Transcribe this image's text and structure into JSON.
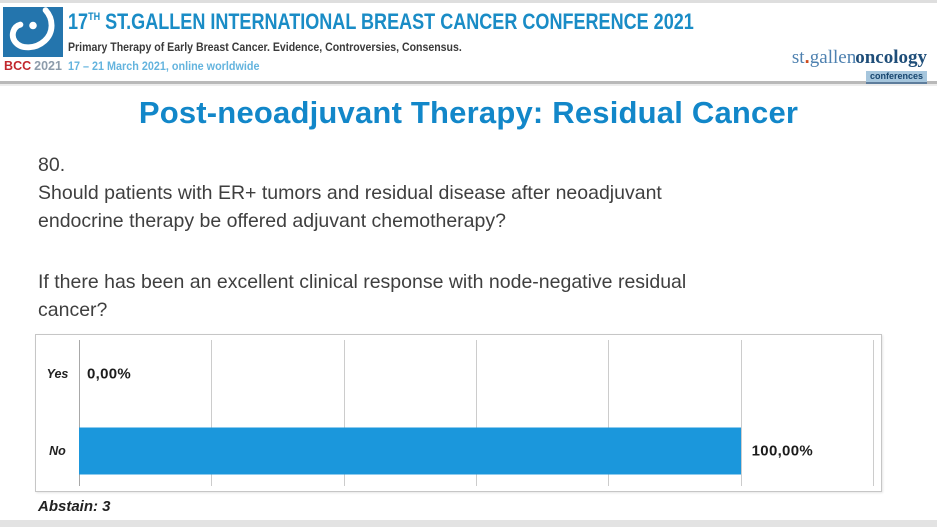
{
  "header": {
    "logo": {
      "bcc": "BCC",
      "year": "2021"
    },
    "title_num": "17",
    "title_sup": "TH",
    "title_rest": " ST.GALLEN INTERNATIONAL BREAST CANCER CONFERENCE 2021",
    "subtitle": "Primary Therapy of Early Breast Cancer. Evidence, Controversies, Consensus.",
    "dates": "17 – 21 March 2021, online worldwide",
    "right_logo": {
      "st": "st",
      "dot": ".",
      "gallen": "gallen",
      "oncology": "oncology",
      "badge": "conferences"
    }
  },
  "slide": {
    "title": "Post-neoadjuvant Therapy: Residual Cancer",
    "question_number": "80.",
    "question_lines": [
      "Should patients with ER+ tumors and residual disease after neoadjuvant",
      "endocrine therapy be offered adjuvant chemotherapy?"
    ],
    "sub_question_lines": [
      "If there has been an excellent clinical response with node-negative residual",
      "cancer?"
    ],
    "abstain": "Abstain: 3"
  },
  "chart_data": {
    "type": "bar",
    "orientation": "horizontal",
    "title": "",
    "categories": [
      "Yes",
      "No"
    ],
    "values": [
      0,
      100
    ],
    "value_labels": [
      "0,00%",
      "100,00%"
    ],
    "xlim": [
      0,
      120
    ],
    "gridline_interval": 20,
    "grid": true,
    "legend": false,
    "bar_color": "#1b97dc",
    "abstain_count": 3
  },
  "colors": {
    "header_title_blue": "#1a8cc6",
    "dates_blue": "#64b4de",
    "slide_title_blue": "#1287c9",
    "bar_blue": "#1b97dc",
    "bcc_red": "#c1272d",
    "logo_square_blue": "#2475ad"
  }
}
